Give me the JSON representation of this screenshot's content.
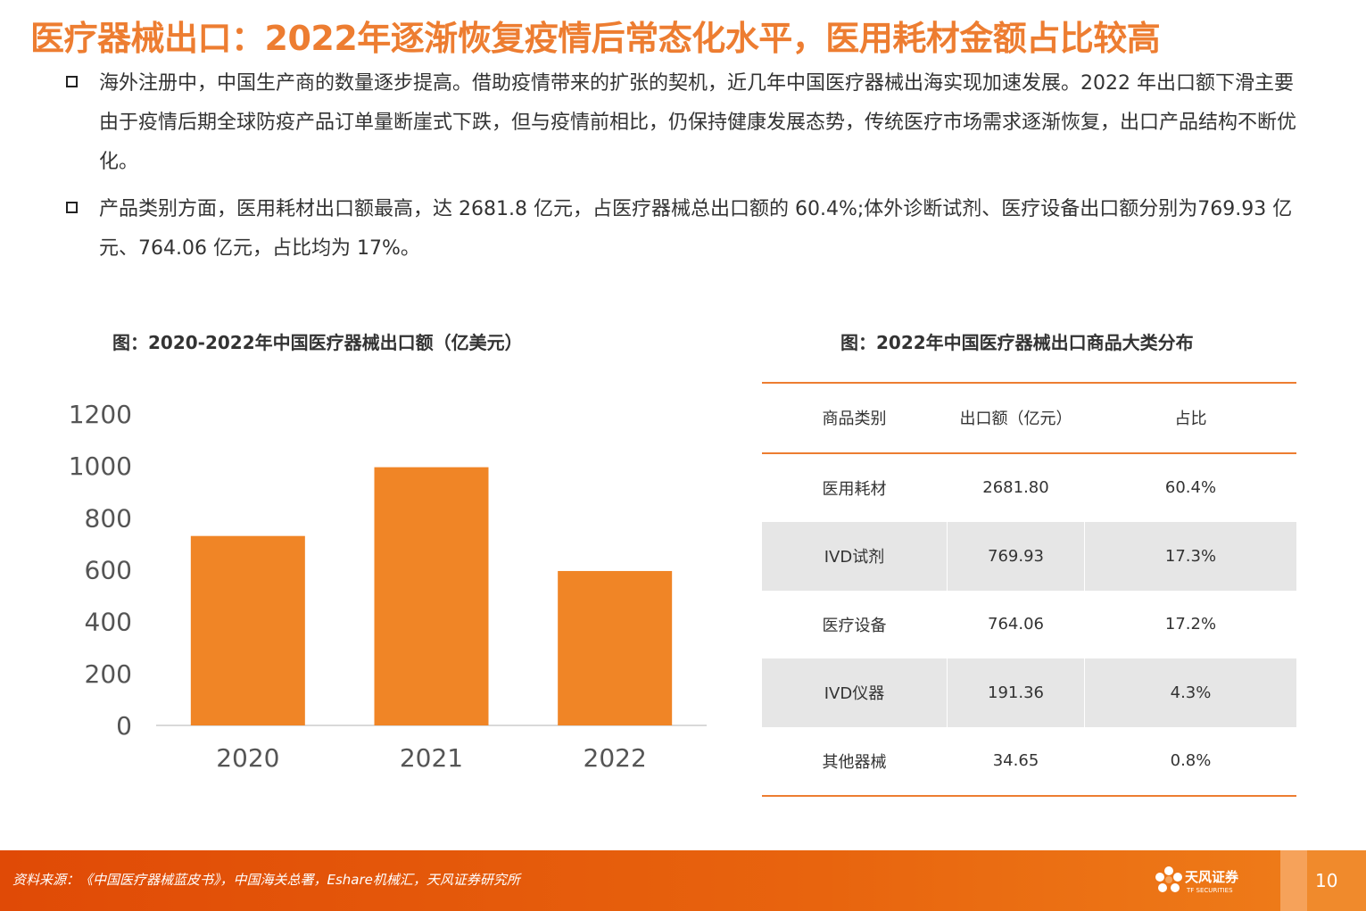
{
  "page": {
    "title": "医疗器械出口：2022年逐渐恢复疫情后常态化水平，医用耗材金额占比较高",
    "page_number": "10"
  },
  "bullets": [
    "海外注册中，中国生产商的数量逐步提高。借助疫情带来的扩张的契机，近几年中国医疗器械出海实现加速发展。2022 年出口额下滑主要由于疫情后期全球防疫产品订单量断崖式下跌，但与疫情前相比，仍保持健康发展态势，传统医疗市场需求逐渐恢复，出口产品结构不断优化。",
    "产品类别方面，医用耗材出口额最高，达 2681.8 亿元，占医疗器械总出口额的 60.4%;体外诊断试剂、医疗设备出口额分别为769.93 亿元、764.06 亿元，占比均为 17%。"
  ],
  "left_figure": {
    "caption": "图：2020-2022年中国医疗器械出口额（亿美元）"
  },
  "chart_data": {
    "type": "bar",
    "categories": [
      "2020",
      "2021",
      "2022"
    ],
    "values": [
      730,
      995,
      595
    ],
    "ylim": [
      0,
      1200
    ],
    "yticks": [
      0,
      200,
      400,
      600,
      800,
      1000,
      1200
    ],
    "bar_color": "#F08526",
    "grid": false,
    "legend": "none"
  },
  "right_figure": {
    "caption": "图：2022年中国医疗器械出口商品大类分布",
    "headers": [
      "商品类别",
      "出口额（亿元）",
      "占比"
    ],
    "rows": [
      [
        "医用耗材",
        "2681.80",
        "60.4%"
      ],
      [
        "IVD试剂",
        "769.93",
        "17.3%"
      ],
      [
        "医疗设备",
        "764.06",
        "17.2%"
      ],
      [
        "IVD仪器",
        "191.36",
        "4.3%"
      ],
      [
        "其他器械",
        "34.65",
        "0.8%"
      ]
    ]
  },
  "footer": {
    "source": "资料来源：《中国医疗器械蓝皮书》，中国海关总署，Eshare机械汇，天风证券研究所",
    "brand": "天风证券",
    "brand_en": "TF SECURITIES"
  },
  "colors": {
    "accent": "#ED7D31",
    "bar": "#F08526",
    "table_shade": "#E6E6E6",
    "footer": "#E8640E"
  }
}
